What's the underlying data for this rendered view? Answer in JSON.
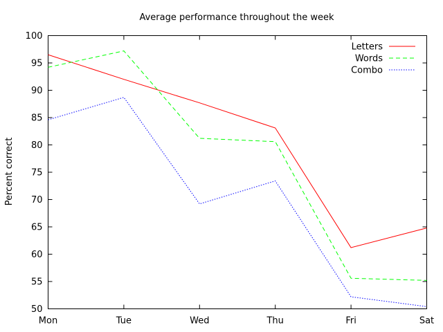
{
  "chart_data": {
    "type": "line",
    "title": "Average performance throughout the week",
    "xlabel": "",
    "ylabel": "Percent correct",
    "categories": [
      "Mon",
      "Tue",
      "Wed",
      "Thu",
      "Fri",
      "Sat"
    ],
    "yticks": [
      "50",
      "55",
      "60",
      "65",
      "70",
      "75",
      "80",
      "85",
      "90",
      "95",
      "100"
    ],
    "ylim": [
      50,
      100
    ],
    "grid": false,
    "legend_position": "top-right",
    "series": [
      {
        "name": "Letters",
        "color": "#ff0000",
        "dash": "solid",
        "values": [
          96.5,
          92.0,
          87.7,
          83.1,
          61.2,
          64.8
        ]
      },
      {
        "name": "Words",
        "color": "#00ff00",
        "dash": "dashed",
        "values": [
          94.2,
          97.2,
          81.2,
          80.6,
          55.6,
          55.2
        ]
      },
      {
        "name": "Combo",
        "color": "#0000ff",
        "dash": "dotted",
        "values": [
          84.6,
          88.7,
          69.2,
          73.4,
          52.2,
          50.4
        ]
      }
    ]
  }
}
